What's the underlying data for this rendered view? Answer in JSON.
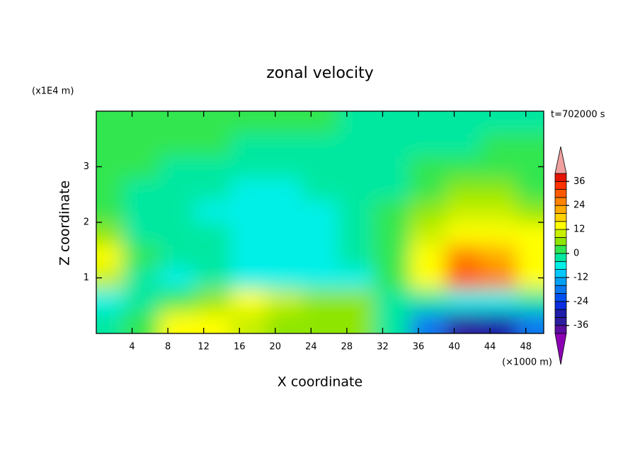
{
  "chart_data": {
    "type": "contour",
    "title": "zonal velocity",
    "annotation": "t=702000 s",
    "xlabel": "X coordinate",
    "ylabel": "Z coordinate",
    "xunit": "(×1000 m)",
    "yunit": "(x1E4 m)",
    "xlim": [
      0,
      50
    ],
    "ylim": [
      0,
      4
    ],
    "xticks": [
      4,
      8,
      12,
      16,
      20,
      24,
      28,
      32,
      36,
      40,
      44,
      48
    ],
    "yticks": [
      1,
      2,
      3
    ],
    "x": [
      1,
      5,
      9,
      13,
      17,
      21,
      25,
      29,
      33,
      37,
      41,
      45,
      49
    ],
    "z": [
      0.2,
      0.6,
      1.0,
      1.4,
      1.8,
      2.2,
      2.6,
      3.0,
      3.4,
      3.8
    ],
    "values": [
      [
        -4,
        0,
        14,
        12,
        10,
        6,
        4,
        6,
        -2,
        -20,
        -34,
        -32,
        -20
      ],
      [
        -6,
        -4,
        2,
        6,
        12,
        8,
        6,
        4,
        -2,
        -4,
        -6,
        -6,
        -4
      ],
      [
        10,
        -4,
        -6,
        -4,
        -6,
        -6,
        -6,
        -6,
        0,
        14,
        28,
        24,
        12
      ],
      [
        12,
        0,
        -2,
        -4,
        -8,
        -6,
        -6,
        -4,
        2,
        14,
        24,
        22,
        14
      ],
      [
        6,
        -2,
        -4,
        -4,
        -8,
        -8,
        -6,
        -4,
        2,
        8,
        14,
        14,
        12
      ],
      [
        2,
        -2,
        -4,
        -6,
        -6,
        -8,
        -6,
        -4,
        0,
        6,
        8,
        8,
        6
      ],
      [
        0,
        -2,
        -2,
        -4,
        -6,
        -6,
        -4,
        -4,
        -2,
        2,
        4,
        4,
        2
      ],
      [
        2,
        0,
        -2,
        -2,
        -2,
        -2,
        -2,
        -2,
        -2,
        0,
        2,
        0,
        0
      ],
      [
        0,
        2,
        2,
        2,
        -2,
        -2,
        -2,
        -2,
        -2,
        -2,
        -2,
        0,
        0
      ],
      [
        2,
        2,
        2,
        2,
        2,
        0,
        0,
        -2,
        -2,
        -2,
        -2,
        -2,
        -2
      ]
    ],
    "levels": [
      -40,
      -36,
      -32,
      -28,
      -24,
      -20,
      -16,
      -12,
      -8,
      -4,
      0,
      4,
      8,
      12,
      16,
      20,
      24,
      28,
      32,
      36,
      40
    ],
    "colors": [
      "#5a0fa0",
      "#2d1ea0",
      "#1e1ea8",
      "#0a2ee0",
      "#0050f0",
      "#0a78f0",
      "#00a0f5",
      "#00c8ff",
      "#00f0e8",
      "#00e8a0",
      "#32e650",
      "#8ee600",
      "#c8f000",
      "#ffff00",
      "#ffd200",
      "#ffaa00",
      "#ff8200",
      "#ff5a00",
      "#ff3200",
      "#e61400"
    ],
    "over_color": "#f0a0a0",
    "under_color": "#8c00b4",
    "colorbar_ticks": [
      -36,
      -24,
      -12,
      0,
      12,
      24,
      36
    ]
  }
}
